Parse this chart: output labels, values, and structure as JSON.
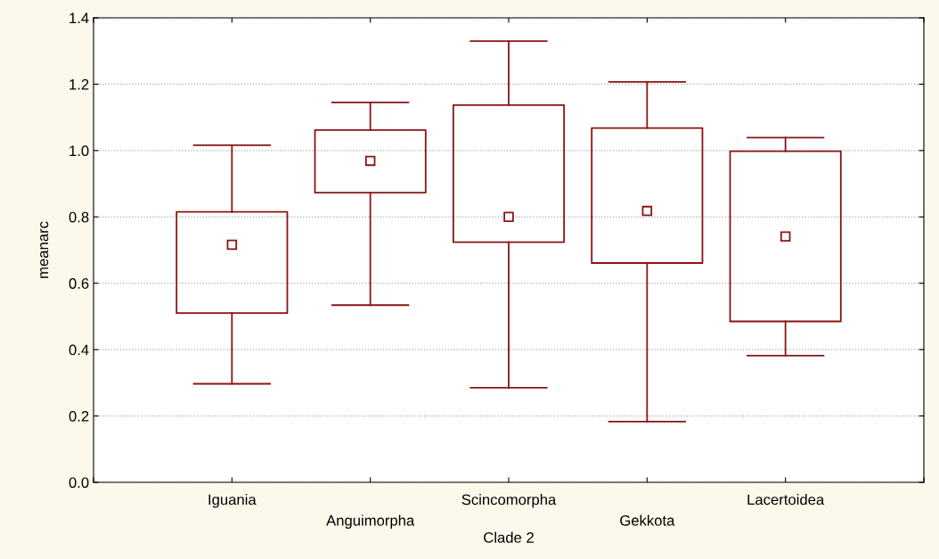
{
  "chart_data": {
    "type": "box",
    "xlabel": "Clade 2",
    "ylabel": "meanarc",
    "categories": [
      "Iguania",
      "Anguimorpha",
      "Scincomorpha",
      "Gekkota",
      "Lacertoidea"
    ],
    "boxes": [
      {
        "low": 0.297,
        "q1": 0.51,
        "median": 0.716,
        "q3": 0.815,
        "high": 1.016
      },
      {
        "low": 0.534,
        "q1": 0.873,
        "median": 0.969,
        "q3": 1.062,
        "high": 1.145
      },
      {
        "low": 0.285,
        "q1": 0.724,
        "median": 0.8,
        "q3": 1.137,
        "high": 1.33
      },
      {
        "low": 0.183,
        "q1": 0.661,
        "median": 0.818,
        "q3": 1.068,
        "high": 1.207
      },
      {
        "low": 0.382,
        "q1": 0.485,
        "median": 0.741,
        "q3": 0.998,
        "high": 1.039
      }
    ],
    "color": "#8b1414",
    "marker": "square",
    "grid": "y",
    "ylim": [
      0.0,
      1.4
    ],
    "yticks": [
      {
        "value": 0.0,
        "label": "0.0"
      },
      {
        "value": 0.2,
        "label": "0.2"
      },
      {
        "value": 0.4,
        "label": "0.4"
      },
      {
        "value": 0.6,
        "label": "0.6"
      },
      {
        "value": 0.8,
        "label": "0.8"
      },
      {
        "value": 1.0,
        "label": "1.0"
      },
      {
        "value": 1.2,
        "label": "1.2"
      },
      {
        "value": 1.4,
        "label": "1.4"
      }
    ]
  }
}
